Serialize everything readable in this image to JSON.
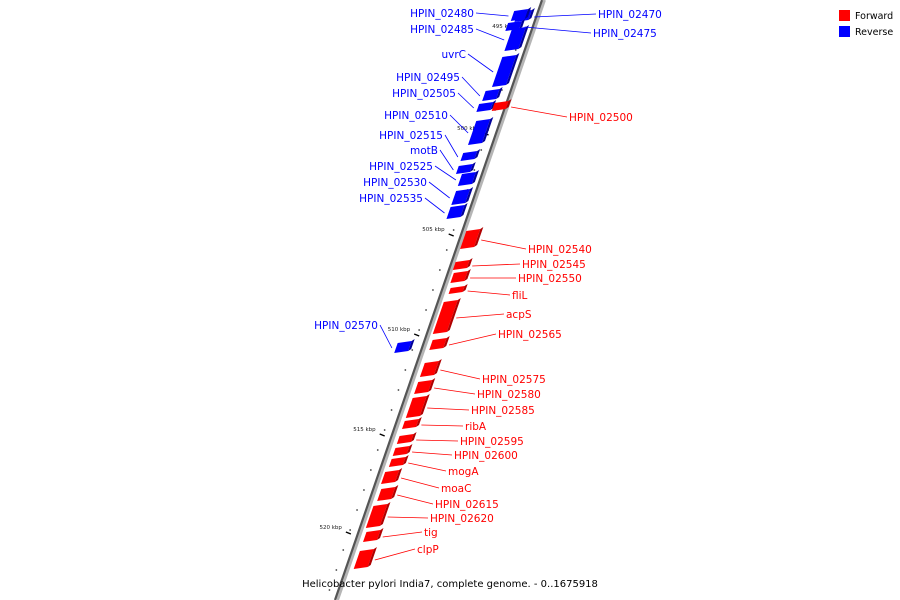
{
  "legend": {
    "forward": {
      "label": "Forward",
      "color": "#ff0000"
    },
    "reverse": {
      "label": "Reverse",
      "color": "#0000ff"
    }
  },
  "caption": "Helicobacter pylori India7, complete genome. - 0..1675918",
  "ticks": [
    "495 kbp",
    "500 kbp",
    "505 kbp",
    "510 kbp",
    "515 kbp",
    "520 kbp"
  ],
  "genes": [
    {
      "name": "HPIN_02470",
      "strand": "reverse"
    },
    {
      "name": "HPIN_02475",
      "strand": "reverse"
    },
    {
      "name": "HPIN_02480",
      "strand": "reverse"
    },
    {
      "name": "HPIN_02485",
      "strand": "reverse"
    },
    {
      "name": "uvrC",
      "strand": "reverse"
    },
    {
      "name": "HPIN_02495",
      "strand": "reverse"
    },
    {
      "name": "HPIN_02505",
      "strand": "reverse"
    },
    {
      "name": "HPIN_02500",
      "strand": "forward"
    },
    {
      "name": "HPIN_02510",
      "strand": "reverse"
    },
    {
      "name": "HPIN_02515",
      "strand": "reverse"
    },
    {
      "name": "motB",
      "strand": "reverse"
    },
    {
      "name": "HPIN_02525",
      "strand": "reverse"
    },
    {
      "name": "HPIN_02530",
      "strand": "reverse"
    },
    {
      "name": "HPIN_02535",
      "strand": "reverse"
    },
    {
      "name": "HPIN_02540",
      "strand": "forward"
    },
    {
      "name": "HPIN_02545",
      "strand": "forward"
    },
    {
      "name": "HPIN_02550",
      "strand": "forward"
    },
    {
      "name": "fliL",
      "strand": "forward"
    },
    {
      "name": "acpS",
      "strand": "forward"
    },
    {
      "name": "HPIN_02565",
      "strand": "forward"
    },
    {
      "name": "HPIN_02570",
      "strand": "reverse"
    },
    {
      "name": "HPIN_02575",
      "strand": "forward"
    },
    {
      "name": "HPIN_02580",
      "strand": "forward"
    },
    {
      "name": "HPIN_02585",
      "strand": "forward"
    },
    {
      "name": "ribA",
      "strand": "forward"
    },
    {
      "name": "HPIN_02595",
      "strand": "forward"
    },
    {
      "name": "HPIN_02600",
      "strand": "forward"
    },
    {
      "name": "mogA",
      "strand": "forward"
    },
    {
      "name": "moaC",
      "strand": "forward"
    },
    {
      "name": "HPIN_02615",
      "strand": "forward"
    },
    {
      "name": "HPIN_02620",
      "strand": "forward"
    },
    {
      "name": "tig",
      "strand": "forward"
    },
    {
      "name": "clpP",
      "strand": "forward"
    }
  ]
}
